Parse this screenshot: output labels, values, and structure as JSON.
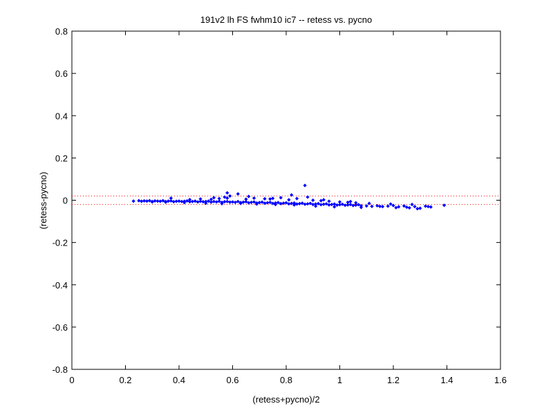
{
  "chart_data": {
    "type": "scatter",
    "title": "191v2 lh FS fwhm10 ic7 -- retess vs. pycno",
    "xlabel": "(retess+pycno)/2",
    "ylabel": "(retess-pycno)",
    "xlim": [
      0,
      1.6
    ],
    "ylim": [
      -0.8,
      0.8
    ],
    "x_ticks": [
      "0",
      "0.2",
      "0.4",
      "0.6",
      "0.8",
      "1",
      "1.2",
      "1.4",
      "1.6"
    ],
    "y_ticks": [
      "-0.8",
      "-0.6",
      "-0.4",
      "-0.2",
      "0",
      "0.2",
      "0.4",
      "0.6",
      "0.8"
    ],
    "grid": false,
    "reference_lines": [
      0.02,
      -0.02
    ],
    "colors": {
      "points": "#0000ff",
      "reference": "#ff0000"
    },
    "series": [
      {
        "x": [
          0.23,
          0.25,
          0.26,
          0.27,
          0.28,
          0.29,
          0.3,
          0.31,
          0.32,
          0.33,
          0.34,
          0.35,
          0.36,
          0.37,
          0.38,
          0.39,
          0.4,
          0.41,
          0.42,
          0.43,
          0.44,
          0.45,
          0.46,
          0.47,
          0.48,
          0.49,
          0.5,
          0.51,
          0.52,
          0.53,
          0.54,
          0.55,
          0.56,
          0.57,
          0.58,
          0.59,
          0.6,
          0.61,
          0.62,
          0.63,
          0.64,
          0.65,
          0.66,
          0.67,
          0.68,
          0.69,
          0.7,
          0.71,
          0.72,
          0.73,
          0.74,
          0.75,
          0.76,
          0.77,
          0.78,
          0.79,
          0.8,
          0.81,
          0.82,
          0.83,
          0.84,
          0.85,
          0.86,
          0.87,
          0.88,
          0.89,
          0.9,
          0.91,
          0.92,
          0.93,
          0.94,
          0.95,
          0.96,
          0.97,
          0.98,
          0.99,
          1.0,
          1.01,
          1.02,
          1.03,
          1.04,
          1.05,
          1.06,
          1.07,
          1.08,
          1.1,
          1.12,
          1.14,
          1.16,
          1.18,
          1.2,
          1.22,
          1.24,
          1.25,
          1.26,
          1.28,
          1.3,
          1.32,
          1.34,
          1.39,
          0.37,
          0.44,
          0.48,
          0.53,
          0.55,
          0.57,
          0.58,
          0.59,
          0.62,
          0.65,
          0.68,
          0.72,
          0.75,
          0.78,
          0.81,
          0.84,
          0.87,
          0.9,
          0.93,
          0.96,
          1.0,
          1.03,
          1.06,
          0.52,
          0.58,
          0.66,
          0.74,
          0.82,
          0.88,
          0.94,
          1.04,
          1.11,
          1.19,
          1.27,
          1.33,
          0.3,
          0.35,
          0.42,
          0.5,
          0.56,
          0.63,
          0.69,
          0.76,
          0.83,
          0.91,
          0.98,
          1.08,
          1.15,
          1.21,
          1.29
        ],
        "y": [
          -0.004,
          -0.002,
          -0.005,
          -0.003,
          -0.004,
          -0.002,
          -0.006,
          -0.003,
          -0.004,
          -0.005,
          -0.002,
          -0.006,
          -0.004,
          -0.003,
          -0.007,
          -0.005,
          -0.004,
          -0.006,
          -0.005,
          -0.003,
          -0.007,
          -0.006,
          -0.004,
          -0.008,
          -0.005,
          -0.007,
          -0.006,
          -0.004,
          -0.009,
          -0.006,
          -0.008,
          -0.005,
          -0.01,
          -0.007,
          -0.006,
          -0.009,
          -0.008,
          -0.01,
          -0.006,
          -0.011,
          -0.009,
          -0.007,
          -0.012,
          -0.01,
          -0.008,
          -0.013,
          -0.011,
          -0.009,
          -0.014,
          -0.012,
          -0.01,
          -0.015,
          -0.013,
          -0.011,
          -0.016,
          -0.014,
          -0.012,
          -0.017,
          -0.015,
          -0.013,
          -0.018,
          -0.016,
          -0.014,
          -0.019,
          -0.017,
          -0.015,
          -0.02,
          -0.018,
          -0.016,
          -0.021,
          -0.019,
          -0.017,
          -0.022,
          -0.02,
          -0.018,
          -0.023,
          -0.021,
          -0.019,
          -0.024,
          -0.022,
          -0.02,
          -0.025,
          -0.023,
          -0.021,
          -0.026,
          -0.027,
          -0.029,
          -0.026,
          -0.03,
          -0.028,
          -0.025,
          -0.031,
          -0.027,
          -0.033,
          -0.036,
          -0.03,
          -0.038,
          -0.028,
          -0.032,
          -0.024,
          0.01,
          0.003,
          0.006,
          0.012,
          0.008,
          0.015,
          0.035,
          0.02,
          0.03,
          0.005,
          0.01,
          0.007,
          0.009,
          0.012,
          0.002,
          0.008,
          0.07,
          0.0,
          -0.002,
          -0.005,
          -0.008,
          -0.01,
          -0.012,
          0.004,
          0.01,
          0.018,
          0.006,
          0.025,
          0.015,
          0.002,
          -0.006,
          -0.015,
          -0.018,
          -0.02,
          -0.03,
          -0.008,
          -0.009,
          -0.011,
          -0.014,
          -0.016,
          -0.015,
          -0.018,
          -0.02,
          -0.022,
          -0.028,
          -0.031,
          -0.034,
          -0.029,
          -0.035,
          -0.04
        ]
      }
    ]
  }
}
